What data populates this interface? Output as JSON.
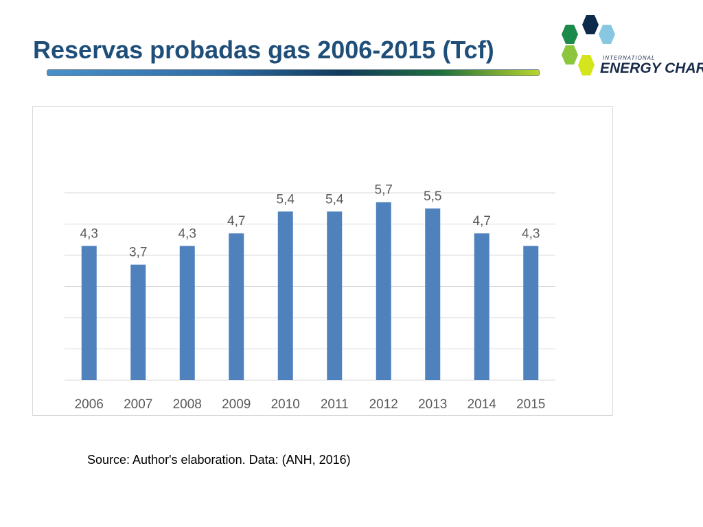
{
  "slide": {
    "title": "Reservas probadas gas 2006-2015 (Tcf)",
    "source": "Source: Author's elaboration. Data: (ANH, 2016)"
  },
  "logo": {
    "line1": "INTERNATIONAL",
    "line2": "ENERGY CHARTER",
    "colors": [
      "#0d2a4a",
      "#87c8e0",
      "#1b8a4a",
      "#8cc63f",
      "#d4e51b"
    ]
  },
  "chart_data": {
    "type": "bar",
    "categories": [
      "2006",
      "2007",
      "2008",
      "2009",
      "2010",
      "2011",
      "2012",
      "2013",
      "2014",
      "2015"
    ],
    "values": [
      4.3,
      3.7,
      4.3,
      4.7,
      5.4,
      5.4,
      5.7,
      5.5,
      4.7,
      4.3
    ],
    "data_labels": [
      "4,3",
      "3,7",
      "4,3",
      "4,7",
      "5,4",
      "5,4",
      "5,7",
      "5,5",
      "4,7",
      "4,3"
    ],
    "ylim": [
      0,
      6
    ],
    "grid": true,
    "bar_color": "#4f81bd",
    "grid_color": "#d9d9d9",
    "label_color": "#595959"
  }
}
